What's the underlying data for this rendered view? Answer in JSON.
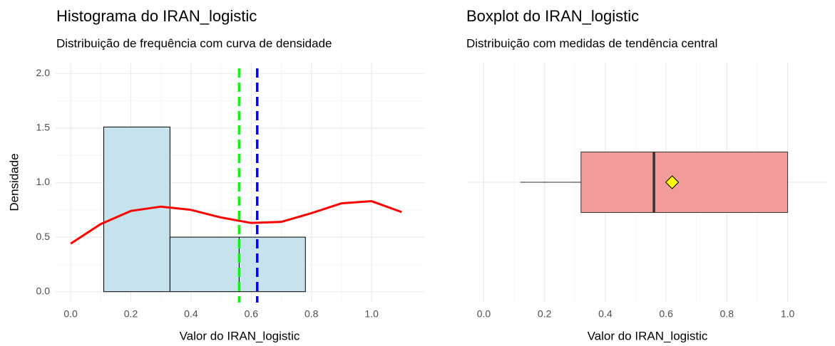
{
  "chart_data": [
    {
      "type": "histogram",
      "title": "Histograma do IRAN_logistic",
      "subtitle": "Distribuição de frequência com curva de densidade",
      "xlabel": "Valor do IRAN_logistic",
      "ylabel": "Densidade",
      "bins": [
        0.11,
        0.33,
        0.56,
        0.78,
        1.0
      ],
      "values": [
        1.51,
        0.5,
        0.5,
        0
      ],
      "color": "#c6e2ec",
      "density": {
        "color": "#ff0000",
        "x": [
          0,
          0.1,
          0.2,
          0.3,
          0.4,
          0.5,
          0.6,
          0.7,
          0.8,
          0.9,
          1.0,
          1.1
        ],
        "values": [
          0.44,
          0.62,
          0.74,
          0.78,
          0.75,
          0.68,
          0.63,
          0.64,
          0.72,
          0.81,
          0.83,
          0.73
        ]
      },
      "lines": [
        {
          "value": 0.56,
          "color": "#00ff00"
        },
        {
          "value": 0.62,
          "color": "#0000ff"
        }
      ],
      "xlim": [
        -0.05,
        1.175
      ],
      "ylim": [
        -0.1,
        2.1
      ],
      "xticks": [
        {
          "value": 0,
          "label": "0.0"
        },
        0.2,
        0.4,
        0.6,
        0.8,
        {
          "value": 1,
          "label": "1.0"
        }
      ],
      "yticks": [
        {
          "value": 0,
          "label": "0.0"
        },
        0.5,
        {
          "value": 1,
          "label": "1.0"
        },
        1.5,
        {
          "value": 2,
          "label": "2.0"
        }
      ],
      "grid": true
    },
    {
      "type": "boxplot",
      "title": "Boxplot do IRAN_logistic",
      "subtitle": "Distribuição com medidas de tendência central",
      "xlabel": "Valor do IRAN_logistic",
      "color": "#f19b9b",
      "mean_color": "#ffff00",
      "whisker_low": 0.12,
      "q1": 0.32,
      "median": 0.56,
      "q3": 1.0,
      "whisker_high": 1.0,
      "mean": 0.62,
      "xlim": [
        -0.055,
        1.13
      ],
      "xticks": [
        {
          "value": 0,
          "label": "0.0"
        },
        0.2,
        0.4,
        0.6,
        0.8,
        {
          "value": 1,
          "label": "1.0"
        }
      ],
      "grid": true
    }
  ]
}
